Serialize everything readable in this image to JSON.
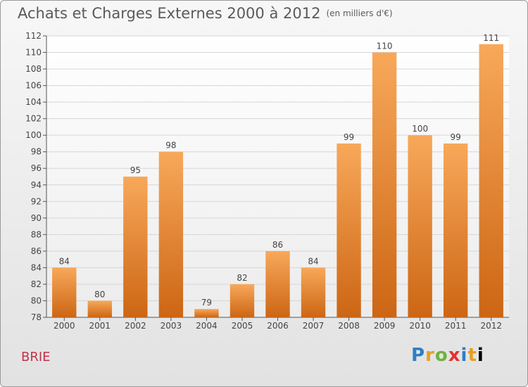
{
  "title": "Achats et Charges Externes 2000 à 2012",
  "unit": "(en milliers d'€)",
  "place": "BRIE",
  "logo": [
    "P",
    "r",
    "o",
    "x",
    "i",
    "t",
    "i"
  ],
  "colors": {
    "bar_top": "#f8a85a",
    "bar_bottom": "#cc6614",
    "grid": "#d6d6d6",
    "axis": "#555555"
  },
  "chart_data": {
    "type": "bar",
    "title": "Achats et Charges Externes 2000 à 2012",
    "subtitle": "(en milliers d'€)",
    "xlabel": "",
    "ylabel": "",
    "categories": [
      "2000",
      "2001",
      "2002",
      "2003",
      "2004",
      "2005",
      "2006",
      "2007",
      "2008",
      "2009",
      "2010",
      "2011",
      "2012"
    ],
    "values": [
      84,
      80,
      95,
      98,
      79,
      82,
      86,
      84,
      99,
      110,
      100,
      99,
      111
    ],
    "ylim": [
      78,
      112
    ],
    "yticks": [
      78,
      80,
      82,
      84,
      86,
      88,
      90,
      92,
      94,
      96,
      98,
      100,
      102,
      104,
      106,
      108,
      110,
      112
    ],
    "grid": true,
    "legend": "none"
  }
}
